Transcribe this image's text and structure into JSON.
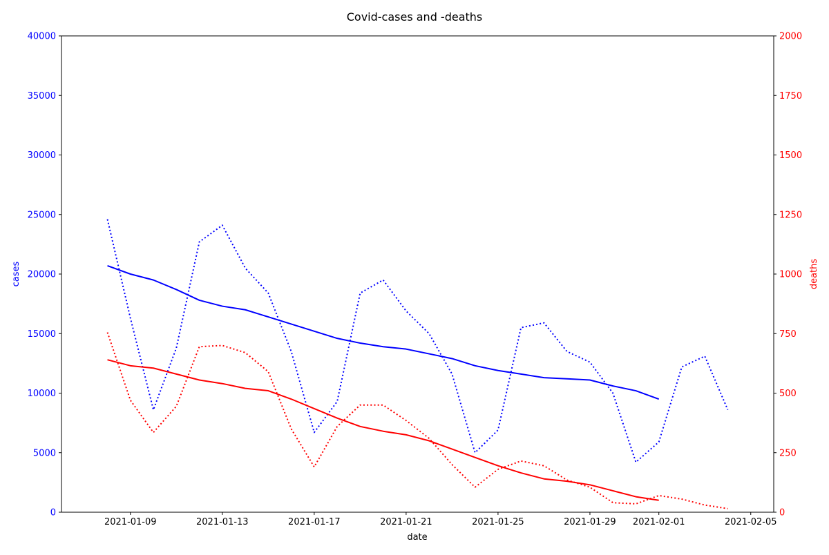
{
  "chart_data": {
    "type": "line",
    "title": "Covid-cases and -deaths",
    "xlabel": "date",
    "ylabel_left": "cases",
    "ylabel_right": "deaths",
    "x_ticks": [
      "2021-01-09",
      "2021-01-13",
      "2021-01-17",
      "2021-01-21",
      "2021-01-25",
      "2021-01-29",
      "2021-02-01",
      "2021-02-05"
    ],
    "xlim": [
      "2021-01-06",
      "2021-02-06"
    ],
    "ylim_left": [
      0,
      40000
    ],
    "ylim_right": [
      0,
      2000
    ],
    "y_ticks_left": [
      0,
      5000,
      10000,
      15000,
      20000,
      25000,
      30000,
      35000,
      40000
    ],
    "y_ticks_right": [
      0,
      250,
      500,
      750,
      1000,
      1250,
      1500,
      1750,
      2000
    ],
    "colors": {
      "cases": "#0000ff",
      "deaths": "#ff0000"
    },
    "grid": false,
    "series": [
      {
        "axis": "left",
        "color": "#0000ff",
        "style": "dotted",
        "x": [
          "2021-01-08",
          "2021-01-09",
          "2021-01-10",
          "2021-01-11",
          "2021-01-12",
          "2021-01-13",
          "2021-01-14",
          "2021-01-15",
          "2021-01-16",
          "2021-01-17",
          "2021-01-18",
          "2021-01-19",
          "2021-01-20",
          "2021-01-21",
          "2021-01-22",
          "2021-01-23",
          "2021-01-24",
          "2021-01-25",
          "2021-01-26",
          "2021-01-27",
          "2021-01-28",
          "2021-01-29",
          "2021-01-30",
          "2021-01-31",
          "2021-02-01",
          "2021-02-02",
          "2021-02-03",
          "2021-02-04"
        ],
        "values": [
          24600,
          16300,
          8600,
          13800,
          22700,
          24100,
          20500,
          18400,
          13500,
          6700,
          9300,
          18400,
          19500,
          16900,
          15000,
          11600,
          5000,
          6900,
          15500,
          15900,
          13500,
          12600,
          10000,
          4200,
          5900,
          12200,
          13100,
          8600
        ]
      },
      {
        "axis": "left",
        "color": "#0000ff",
        "style": "solid",
        "x": [
          "2021-01-08",
          "2021-01-09",
          "2021-01-10",
          "2021-01-11",
          "2021-01-12",
          "2021-01-13",
          "2021-01-14",
          "2021-01-15",
          "2021-01-16",
          "2021-01-17",
          "2021-01-18",
          "2021-01-19",
          "2021-01-20",
          "2021-01-21",
          "2021-01-22",
          "2021-01-23",
          "2021-01-24",
          "2021-01-25",
          "2021-01-26",
          "2021-01-27",
          "2021-01-28",
          "2021-01-29",
          "2021-01-30",
          "2021-01-31",
          "2021-02-01"
        ],
        "values": [
          20700,
          20000,
          19500,
          18700,
          17800,
          17300,
          17000,
          16400,
          15800,
          15200,
          14600,
          14200,
          13900,
          13700,
          13300,
          12900,
          12300,
          11900,
          11600,
          11300,
          11200,
          11100,
          10600,
          10200,
          9500
        ]
      },
      {
        "axis": "right",
        "color": "#ff0000",
        "style": "dotted",
        "x": [
          "2021-01-08",
          "2021-01-09",
          "2021-01-10",
          "2021-01-11",
          "2021-01-12",
          "2021-01-13",
          "2021-01-14",
          "2021-01-15",
          "2021-01-16",
          "2021-01-17",
          "2021-01-18",
          "2021-01-19",
          "2021-01-20",
          "2021-01-21",
          "2021-01-22",
          "2021-01-23",
          "2021-01-24",
          "2021-01-25",
          "2021-01-26",
          "2021-01-27",
          "2021-01-28",
          "2021-01-29",
          "2021-01-30",
          "2021-01-31",
          "2021-02-01",
          "2021-02-02",
          "2021-02-03",
          "2021-02-04"
        ],
        "values": [
          755,
          470,
          335,
          445,
          695,
          700,
          670,
          590,
          350,
          190,
          360,
          450,
          450,
          385,
          310,
          200,
          105,
          180,
          215,
          195,
          135,
          105,
          40,
          35,
          70,
          55,
          30,
          15
        ]
      },
      {
        "axis": "right",
        "color": "#ff0000",
        "style": "solid",
        "x": [
          "2021-01-08",
          "2021-01-09",
          "2021-01-10",
          "2021-01-11",
          "2021-01-12",
          "2021-01-13",
          "2021-01-14",
          "2021-01-15",
          "2021-01-16",
          "2021-01-17",
          "2021-01-18",
          "2021-01-19",
          "2021-01-20",
          "2021-01-21",
          "2021-01-22",
          "2021-01-23",
          "2021-01-24",
          "2021-01-25",
          "2021-01-26",
          "2021-01-27",
          "2021-01-28",
          "2021-01-29",
          "2021-01-30",
          "2021-01-31",
          "2021-02-01"
        ],
        "values": [
          640,
          615,
          605,
          580,
          555,
          540,
          520,
          510,
          475,
          435,
          395,
          360,
          340,
          325,
          300,
          265,
          230,
          195,
          165,
          140,
          130,
          115,
          90,
          65,
          50
        ]
      }
    ]
  }
}
